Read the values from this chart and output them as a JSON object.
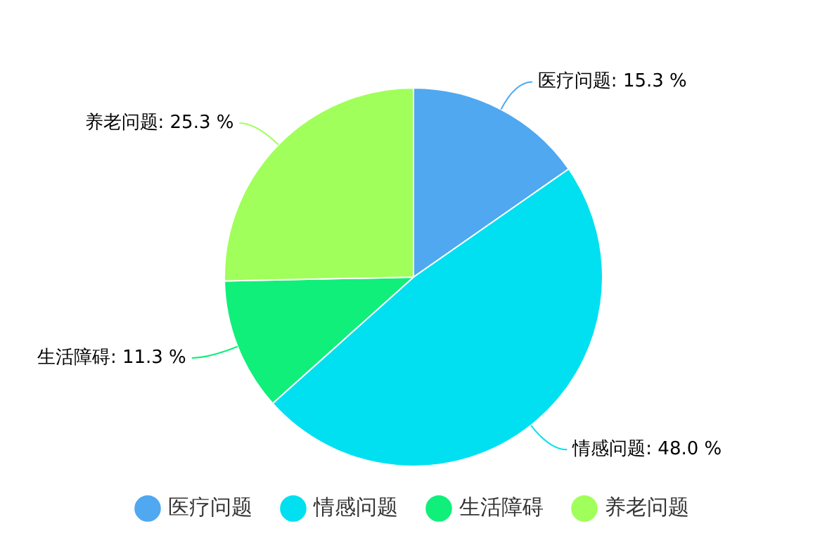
{
  "chart_data": {
    "type": "pie",
    "categories": [
      "医疗问题",
      "情感问题",
      "生活障碍",
      "养老问题"
    ],
    "values": [
      15.3,
      48.0,
      11.3,
      25.3
    ],
    "value_labels": [
      ": 15.3 %",
      ": 48.0 %",
      ": 11.3 %",
      ": 25.3 %"
    ],
    "colors": [
      "#4fa8f0",
      "#00e0f0",
      "#10ef7a",
      "#a0ff5a"
    ],
    "legend": "bottom"
  }
}
